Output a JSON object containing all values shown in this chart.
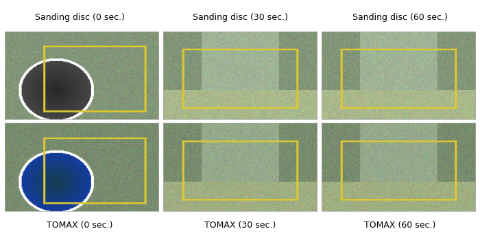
{
  "figsize": [
    7.0,
    3.5
  ],
  "dpi": 100,
  "background_color": "#ffffff",
  "top_labels": [
    "Sanding disc (0 sec.)",
    "Sanding disc (30 sec.)",
    "Sanding disc (60 sec.)"
  ],
  "bottom_labels": [
    "TOMAX (0 sec.)",
    "TOMAX (30 sec.)",
    "TOMAX (60 sec.)"
  ],
  "label_fontsize": 9,
  "grid_rows": 2,
  "grid_cols": 3,
  "border_color": "#cccccc",
  "top_row_bg": "#5a7a5a",
  "bottom_row_bg": "#4a6a4a",
  "image_aspect": "auto"
}
